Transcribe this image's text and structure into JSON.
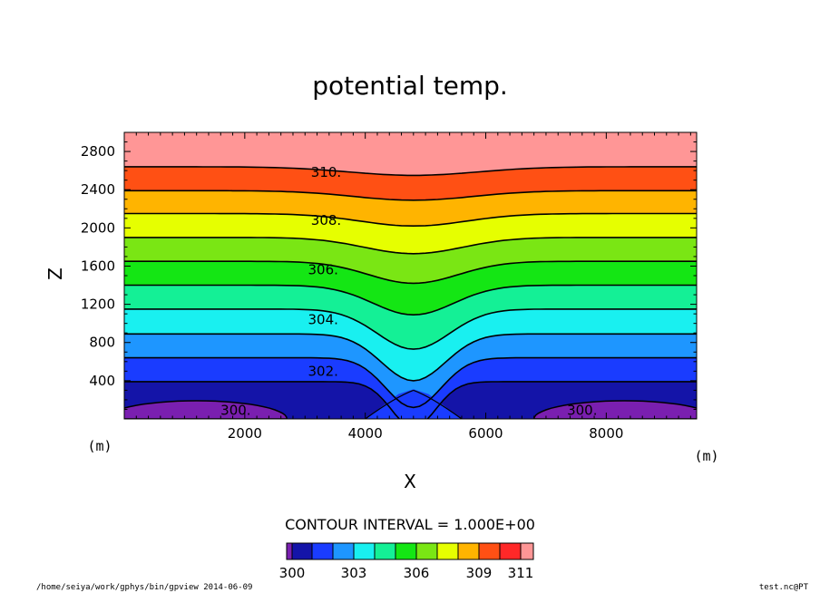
{
  "chart_data": {
    "type": "contour",
    "title": "potential temp.",
    "xlabel": "X",
    "ylabel": "Z",
    "x_unit": "(m)",
    "y_unit": "(m)",
    "xlim": [
      0,
      9500
    ],
    "ylim": [
      0,
      3000
    ],
    "x_ticks": [
      "2000",
      "4000",
      "6000",
      "8000"
    ],
    "y_ticks": [
      "400",
      "800",
      "1200",
      "1600",
      "2000",
      "2400",
      "2800"
    ],
    "contour_labels": [
      "300.",
      "300.",
      "302.",
      "304.",
      "306.",
      "308.",
      "310."
    ],
    "contour_interval_text": "CONTOUR INTERVAL = 1.000E+00",
    "colorbar_labels": [
      "300",
      "303",
      "306",
      "309",
      "311"
    ],
    "colorbar_colors": [
      "#7a1fb0",
      "#1414a8",
      "#1a3cff",
      "#1e96ff",
      "#19f0f0",
      "#14f096",
      "#14e614",
      "#7ae614",
      "#e6ff00",
      "#ffb400",
      "#ff5014",
      "#ff2828",
      "#ff9696"
    ],
    "footer_left": "/home/seiya/work/gphys/bin/gpview 2014-06-09",
    "footer_right": "test.nc@PT"
  }
}
